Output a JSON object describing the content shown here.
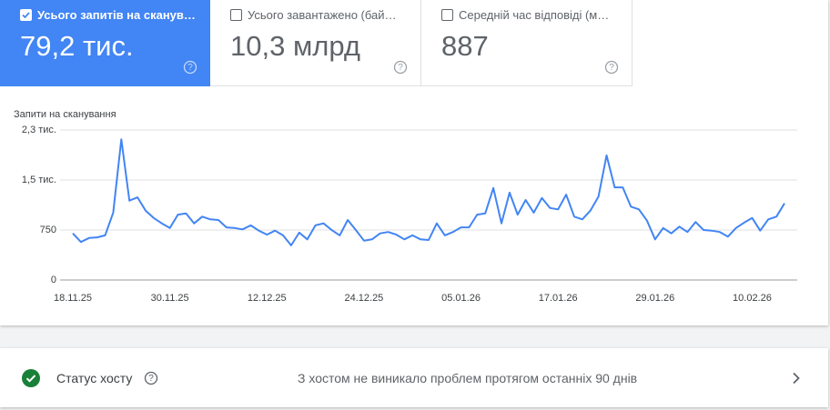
{
  "metric_cards": [
    {
      "label": "Усього запитів на сканув…",
      "value": "79,2 тис."
    },
    {
      "label": "Усього завантажено (бай…",
      "value": "10,3 млрд"
    },
    {
      "label": "Середній час відповіді (м…",
      "value": "887"
    }
  ],
  "chart_data": {
    "type": "line",
    "title": "Запити на сканування",
    "categories": [
      "18.11.25",
      null,
      null,
      null,
      null,
      null,
      null,
      null,
      null,
      null,
      null,
      null,
      "30.11.25",
      null,
      null,
      null,
      null,
      null,
      null,
      null,
      null,
      null,
      null,
      null,
      "12.12.25",
      null,
      null,
      null,
      null,
      null,
      null,
      null,
      null,
      null,
      null,
      null,
      "24.12.25",
      null,
      null,
      null,
      null,
      null,
      null,
      null,
      null,
      null,
      null,
      null,
      "05.01.26",
      null,
      null,
      null,
      null,
      null,
      null,
      null,
      null,
      null,
      null,
      null,
      "17.01.26",
      null,
      null,
      null,
      null,
      null,
      null,
      null,
      null,
      null,
      null,
      null,
      "29.01.26",
      null,
      null,
      null,
      null,
      null,
      null,
      null,
      null,
      null,
      null,
      null,
      "10.02.26",
      null,
      null,
      null,
      null
    ],
    "values": [
      700,
      570,
      630,
      640,
      670,
      1010,
      2110,
      1190,
      1240,
      1040,
      930,
      850,
      780,
      980,
      1000,
      850,
      950,
      910,
      900,
      790,
      780,
      760,
      820,
      740,
      680,
      740,
      670,
      520,
      710,
      610,
      820,
      850,
      750,
      670,
      900,
      750,
      590,
      610,
      700,
      720,
      680,
      610,
      670,
      610,
      600,
      850,
      670,
      720,
      790,
      790,
      980,
      1000,
      1380,
      850,
      1310,
      980,
      1200,
      1010,
      1230,
      1080,
      1060,
      1280,
      950,
      910,
      1040,
      1250,
      1870,
      1390,
      1390,
      1100,
      1060,
      890,
      610,
      780,
      700,
      800,
      720,
      870,
      750,
      740,
      720,
      650,
      780,
      860,
      930,
      740,
      910,
      950,
      1150
    ],
    "color": "#4285f4",
    "ylim": [
      0,
      2250
    ],
    "yticks": [
      0,
      750,
      {
        "value": 1500,
        "label": "1,5 тис."
      },
      {
        "value": 2250,
        "label": "2,3 тис."
      }
    ],
    "grid": true
  },
  "host_status": {
    "title": "Статус хосту",
    "message": "З хостом не виникало проблем протягом останніх 90 днів"
  }
}
